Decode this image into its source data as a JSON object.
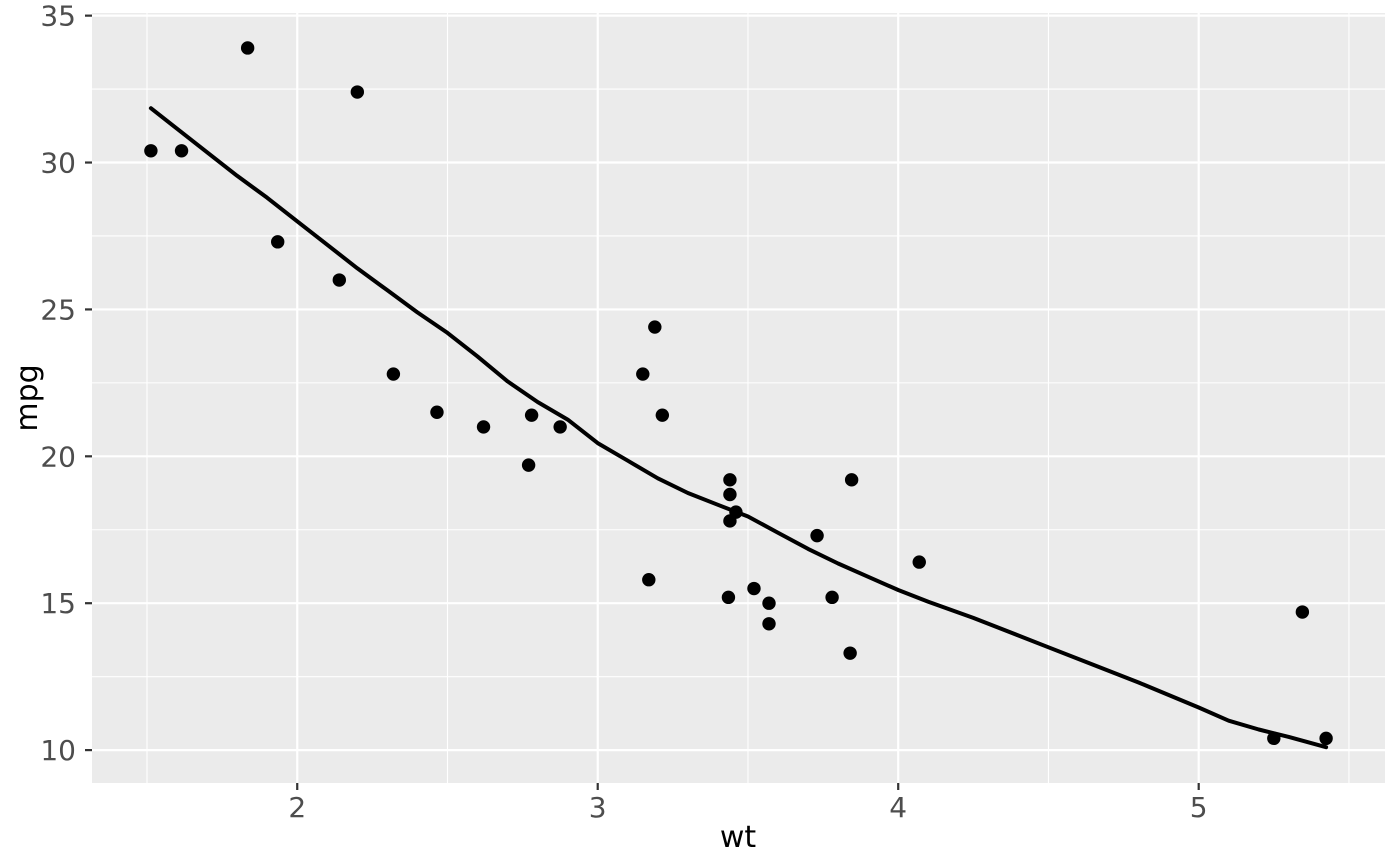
{
  "chart_data": {
    "type": "scatter",
    "title": "",
    "xlabel": "wt",
    "ylabel": "mpg",
    "legend": "none",
    "grid": "major and minor, white on grey panel",
    "xlim": [
      1.317,
      5.62
    ],
    "ylim": [
      8.88,
      35.09
    ],
    "x_ticks": [
      2,
      3,
      4,
      5
    ],
    "x_tick_labels": [
      "2",
      "3",
      "4",
      "5"
    ],
    "x_minor_ticks": [
      1.5,
      2.5,
      3.5,
      4.5,
      5.5
    ],
    "y_ticks": [
      10,
      15,
      20,
      25,
      30,
      35
    ],
    "y_tick_labels": [
      "10",
      "15",
      "20",
      "25",
      "30",
      "35"
    ],
    "y_minor_ticks": [
      12.5,
      17.5,
      22.5,
      27.5,
      32.5
    ],
    "series": [
      {
        "name": "points",
        "type": "scatter",
        "points": [
          [
            2.62,
            21.0
          ],
          [
            2.875,
            21.0
          ],
          [
            2.32,
            22.8
          ],
          [
            3.215,
            21.4
          ],
          [
            3.44,
            18.7
          ],
          [
            3.46,
            18.1
          ],
          [
            3.57,
            14.3
          ],
          [
            3.19,
            24.4
          ],
          [
            3.15,
            22.8
          ],
          [
            3.44,
            19.2
          ],
          [
            3.44,
            17.8
          ],
          [
            4.07,
            16.4
          ],
          [
            3.73,
            17.3
          ],
          [
            3.78,
            15.2
          ],
          [
            5.25,
            10.4
          ],
          [
            5.424,
            10.4
          ],
          [
            5.345,
            14.7
          ],
          [
            2.2,
            32.4
          ],
          [
            1.615,
            30.4
          ],
          [
            1.835,
            33.9
          ],
          [
            2.465,
            21.5
          ],
          [
            3.52,
            15.5
          ],
          [
            3.435,
            15.2
          ],
          [
            3.84,
            13.3
          ],
          [
            3.845,
            19.2
          ],
          [
            1.935,
            27.3
          ],
          [
            2.14,
            26.0
          ],
          [
            1.513,
            30.4
          ],
          [
            3.17,
            15.8
          ],
          [
            2.77,
            19.7
          ],
          [
            3.57,
            15.0
          ],
          [
            2.78,
            21.4
          ]
        ]
      },
      {
        "name": "smooth-fit",
        "type": "line",
        "points": [
          [
            1.513,
            31.85
          ],
          [
            1.6,
            31.15
          ],
          [
            1.7,
            30.35
          ],
          [
            1.8,
            29.55
          ],
          [
            1.9,
            28.8
          ],
          [
            2.0,
            28.0
          ],
          [
            2.1,
            27.2
          ],
          [
            2.2,
            26.4
          ],
          [
            2.3,
            25.65
          ],
          [
            2.4,
            24.9
          ],
          [
            2.5,
            24.2
          ],
          [
            2.6,
            23.4
          ],
          [
            2.7,
            22.55
          ],
          [
            2.8,
            21.85
          ],
          [
            2.9,
            21.25
          ],
          [
            3.0,
            20.45
          ],
          [
            3.1,
            19.85
          ],
          [
            3.2,
            19.25
          ],
          [
            3.3,
            18.75
          ],
          [
            3.4,
            18.35
          ],
          [
            3.5,
            17.95
          ],
          [
            3.6,
            17.4
          ],
          [
            3.7,
            16.85
          ],
          [
            3.8,
            16.35
          ],
          [
            3.9,
            15.9
          ],
          [
            4.0,
            15.45
          ],
          [
            4.1,
            15.05
          ],
          [
            4.25,
            14.5
          ],
          [
            4.4,
            13.9
          ],
          [
            4.5,
            13.5
          ],
          [
            4.65,
            12.9
          ],
          [
            4.8,
            12.3
          ],
          [
            5.0,
            11.45
          ],
          [
            5.1,
            11.0
          ],
          [
            5.2,
            10.7
          ],
          [
            5.3,
            10.45
          ],
          [
            5.424,
            10.1
          ]
        ]
      }
    ],
    "colors": {
      "figure_bg": "#FFFFFF",
      "panel_bg": "#EBEBEB",
      "gridline": "#FFFFFF",
      "point": "#000000",
      "smooth_line": "#000000",
      "tick_mark": "#333333",
      "tick_label": "#4D4D4D",
      "axis_title": "#000000"
    }
  }
}
